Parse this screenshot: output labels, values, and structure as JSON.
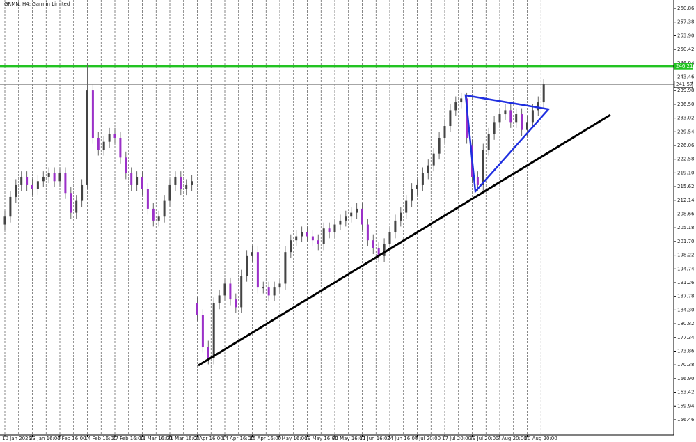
{
  "chart_data": {
    "type": "candlestick",
    "title": "GRMN, H4:  Garmin Limited",
    "categories": [
      "10 Jan 2025",
      null,
      null,
      null,
      null,
      "23 Jan 16:00",
      null,
      null,
      null,
      null,
      "4 Feb 16:00",
      null,
      null,
      null,
      null,
      "14 Feb 16:00",
      null,
      null,
      null,
      null,
      "27 Feb 16:00",
      null,
      null,
      null,
      null,
      "11 Mar 16:00",
      null,
      null,
      null,
      null,
      "21 Mar 16:00",
      null,
      null,
      null,
      null,
      "2 Apr 16:00",
      null,
      null,
      null,
      null,
      "14 Apr 16:00",
      null,
      null,
      null,
      null,
      "25 Apr 16:00",
      null,
      null,
      null,
      null,
      "7 May 16:00",
      null,
      null,
      null,
      null,
      "19 May 16:00",
      null,
      null,
      null,
      null,
      "30 May 16:00",
      null,
      null,
      null,
      null,
      "11 Jun 16:00",
      null,
      null,
      null,
      null,
      "24 Jun 16:00",
      null,
      null,
      null,
      null,
      "7 Jul 20:00",
      null,
      null,
      null,
      null,
      "17 Jul 20:00",
      null,
      null,
      null,
      null,
      "29 Jul 20:00",
      null,
      null,
      null,
      null,
      "8 Aug 20:00",
      null,
      null,
      null,
      null,
      "20 Aug 20:00",
      null,
      null,
      null
    ],
    "open": [
      206,
      208,
      213,
      216,
      218,
      216,
      215,
      217,
      218,
      219,
      217,
      219,
      214,
      209,
      212,
      216,
      240,
      228,
      225,
      227,
      229,
      228,
      223,
      219,
      216,
      218,
      215,
      210,
      207,
      208,
      212,
      216,
      218,
      215,
      216,
      186,
      183,
      175,
      172,
      186,
      188,
      191,
      187,
      185,
      193,
      198,
      199,
      190,
      190,
      188,
      190,
      191,
      199,
      202,
      203,
      204,
      203,
      202,
      201,
      205,
      204,
      206,
      207,
      208,
      209,
      210,
      206,
      202,
      200,
      198,
      201,
      204,
      207,
      209,
      212,
      215,
      216,
      219,
      221,
      224,
      228,
      231,
      235,
      237,
      238,
      226,
      218,
      216,
      225,
      229,
      232,
      234,
      235,
      232,
      234,
      230,
      232,
      235,
      237
    ],
    "high": [
      209.5,
      214.5,
      217.5,
      219.5,
      219.5,
      217.5,
      218.5,
      219.5,
      220.5,
      220.5,
      220.5,
      220.5,
      215.5,
      213.5,
      217.5,
      247,
      241.5,
      229.5,
      228.5,
      230.5,
      230.5,
      229.5,
      224.5,
      220.5,
      219.5,
      219.5,
      216.5,
      211.5,
      209.5,
      213.5,
      217.5,
      219.5,
      219.5,
      217.5,
      218.5,
      187.5,
      184.5,
      176.5,
      187.5,
      189.5,
      192.5,
      192.5,
      188.5,
      194.5,
      199.5,
      200.5,
      200.5,
      191.5,
      191.5,
      191.5,
      192.5,
      200.5,
      203.5,
      204.5,
      205.5,
      205.5,
      204.5,
      203.5,
      206.5,
      206.5,
      207.5,
      208.5,
      209.5,
      210.5,
      211.5,
      211.5,
      207.5,
      203.5,
      201.5,
      202.5,
      205.5,
      208.5,
      210.5,
      213.5,
      216.5,
      217.5,
      220.5,
      222.5,
      225.5,
      229.5,
      232.5,
      236.5,
      238.5,
      239.5,
      239.5,
      227.5,
      219.5,
      226.5,
      230.5,
      233.5,
      235.5,
      236.5,
      236.5,
      235.5,
      235.5,
      233.5,
      236.5,
      238.5,
      243
    ],
    "low": [
      204.5,
      206.5,
      211.5,
      214.5,
      214.5,
      213.5,
      213.5,
      215.5,
      216.5,
      215.5,
      215.5,
      212.5,
      207.5,
      207.5,
      210.5,
      215,
      226.5,
      223.5,
      223.5,
      225.5,
      226.5,
      221.5,
      217.5,
      214.5,
      214.5,
      213.5,
      208.5,
      205.5,
      205.5,
      206.5,
      210.5,
      214.5,
      213.5,
      213.5,
      214.5,
      181.5,
      173.5,
      170.5,
      170.5,
      184.5,
      186.5,
      185.5,
      183.5,
      183.5,
      191.5,
      196.5,
      188.5,
      188.5,
      186.5,
      186.5,
      188.5,
      189.5,
      197.5,
      200.5,
      201.5,
      201.5,
      200.5,
      199.5,
      199.5,
      202.5,
      202.5,
      204.5,
      205.5,
      206.5,
      207.5,
      204.5,
      200.5,
      198.5,
      196.5,
      196.5,
      199.5,
      202.5,
      205.5,
      207.5,
      210.5,
      213.5,
      214.5,
      217.5,
      219.5,
      222.5,
      226.5,
      229.5,
      233.5,
      235.5,
      226.5,
      216.5,
      214.5,
      214.5,
      223.5,
      227.5,
      230.5,
      232.5,
      230.5,
      230.5,
      228.5,
      228.5,
      230.5,
      233.5,
      235.5
    ],
    "close": [
      208,
      213,
      216,
      218,
      216,
      215,
      217,
      218,
      219,
      217,
      219,
      214,
      209,
      212,
      216,
      240,
      228,
      225,
      227,
      229,
      228,
      223,
      219,
      216,
      218,
      215,
      210,
      207,
      208,
      212,
      216,
      218,
      215,
      216,
      217,
      183,
      175,
      172,
      186,
      188,
      191,
      187,
      185,
      193,
      198,
      199,
      190,
      190,
      188,
      190,
      191,
      199,
      202,
      203,
      204,
      203,
      202,
      201,
      205,
      204,
      206,
      207,
      208,
      209,
      210,
      206,
      202,
      200,
      198,
      201,
      204,
      207,
      209,
      212,
      215,
      216,
      219,
      221,
      224,
      228,
      231,
      235,
      237,
      238,
      228,
      218,
      216,
      225,
      229,
      232,
      234,
      235,
      232,
      234,
      230,
      232,
      235,
      237,
      241.57
    ],
    "up_color": "#444444",
    "down_color": "#9b30c8",
    "ylim": [
      152.57,
      262.98
    ],
    "yticks": [
      260.86,
      257.38,
      {
        "value": 253.9,
        "label": "253.90"
      },
      250.42,
      246.94,
      243.46,
      239.98,
      {
        "value": 236.5,
        "label": "236.50"
      },
      233.02,
      229.54,
      226.06,
      222.58,
      {
        "value": 219.1,
        "label": "219.10"
      },
      215.62,
      212.14,
      208.66,
      205.18,
      {
        "value": 201.7,
        "label": "201.70"
      },
      198.22,
      194.74,
      191.26,
      187.78,
      {
        "value": 184.3,
        "label": "184.30"
      },
      180.82,
      177.34,
      173.86,
      170.38,
      {
        "value": 166.9,
        "label": "166.90"
      },
      163.42,
      159.94,
      156.46
    ],
    "levels": [
      {
        "value": 246.21,
        "color": "#22c322"
      },
      {
        "value": 241.57,
        "color": "#888888"
      }
    ],
    "grid": true
  }
}
